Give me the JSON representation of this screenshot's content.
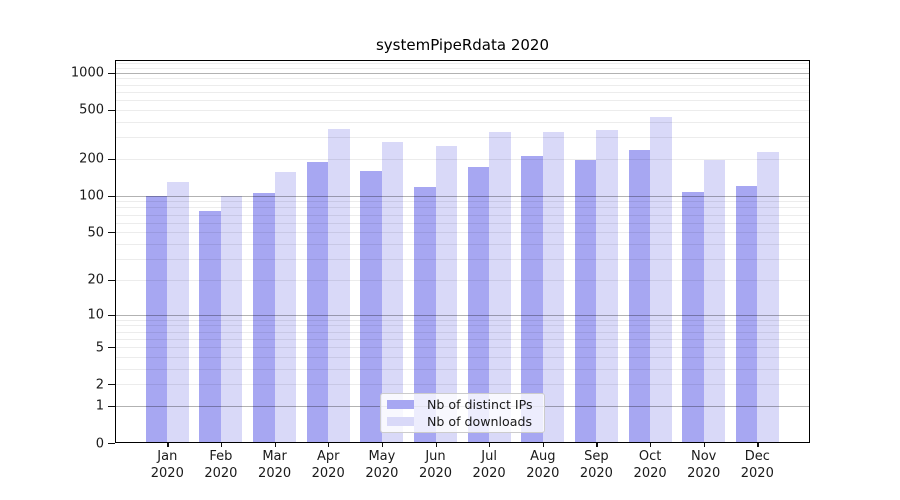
{
  "title": "systemPipeRdata 2020",
  "colors": {
    "series_distinct_ips": "#a7a7f2",
    "series_downloads": "#d9d9f8",
    "major_grid": "#b0b0b0",
    "minor_grid": "#ebebeb",
    "axis": "#000000",
    "background": "#ffffff",
    "legend_border": "#cccccc"
  },
  "chart_data": {
    "type": "bar",
    "title": "systemPipeRdata 2020",
    "categories": [
      "Jan 2020",
      "Feb 2020",
      "Mar 2020",
      "Apr 2020",
      "May 2020",
      "Jun 2020",
      "Jul 2020",
      "Aug 2020",
      "Sep 2020",
      "Oct 2020",
      "Nov 2020",
      "Dec 2020"
    ],
    "series": [
      {
        "name": "Nb of distinct IPs",
        "color": "#a7a7f2",
        "values": [
          100,
          75,
          105,
          190,
          158,
          118,
          170,
          210,
          195,
          235,
          108,
          120
        ]
      },
      {
        "name": "Nb of downloads",
        "color": "#d9d9f8",
        "values": [
          130,
          100,
          155,
          350,
          272,
          255,
          333,
          330,
          340,
          440,
          196,
          227
        ]
      }
    ],
    "xlabel": "",
    "ylabel": "",
    "y_scale": "log1p",
    "y_ticks": [
      0,
      1,
      2,
      5,
      10,
      20,
      50,
      100,
      200,
      500,
      1000
    ],
    "ylim": [
      0,
      1270
    ],
    "grid": "both",
    "legend_position": "lower-center-inside"
  }
}
